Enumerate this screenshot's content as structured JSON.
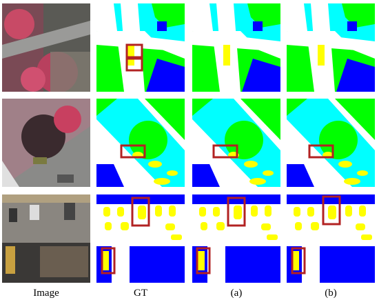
{
  "columns": [
    {
      "label": "Image"
    },
    {
      "label": "GT"
    },
    {
      "label": "(a)"
    },
    {
      "label": "(b)"
    }
  ]
}
